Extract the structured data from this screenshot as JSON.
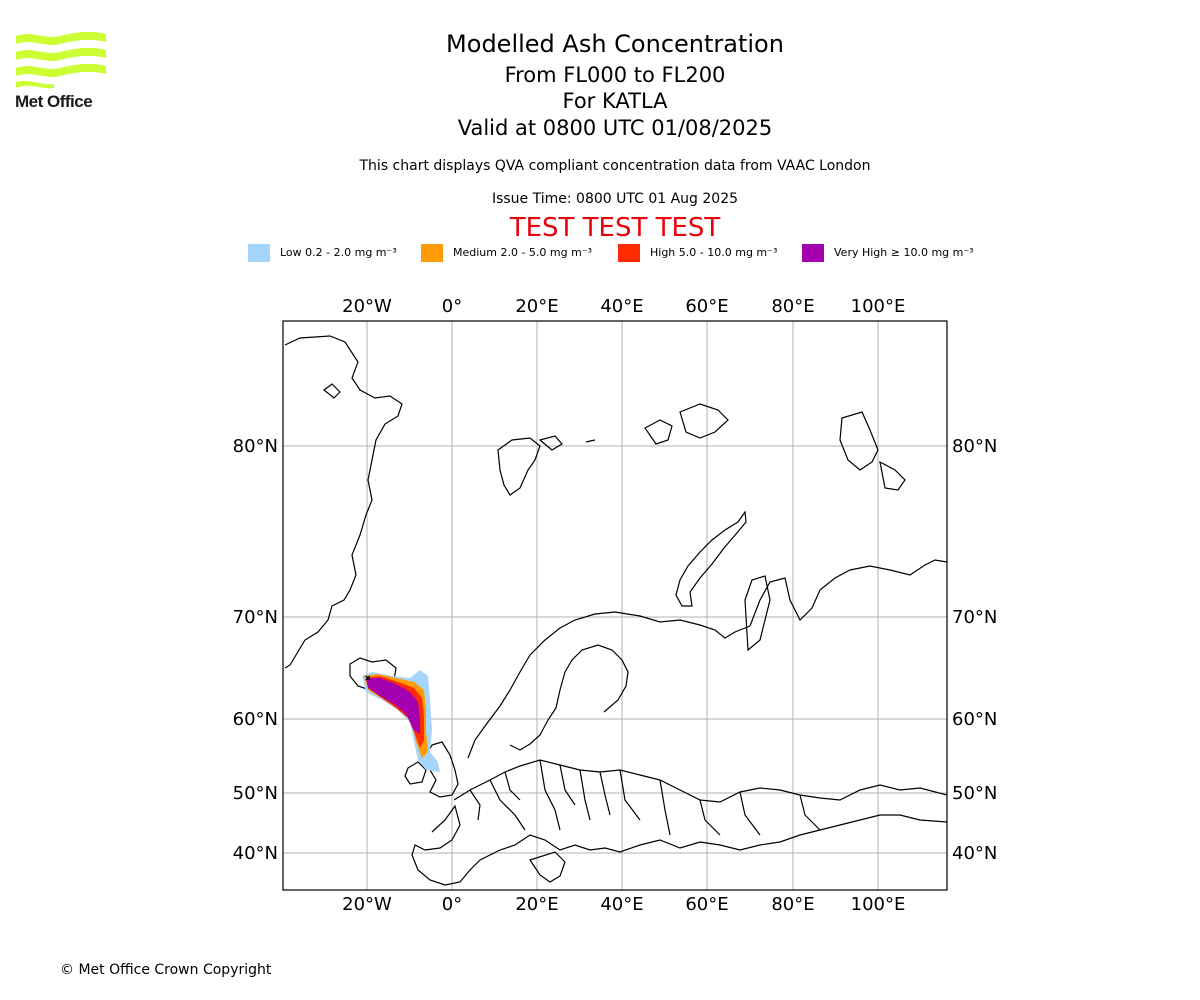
{
  "header": {
    "logo_text": "Met Office",
    "title": "Modelled Ash Concentration",
    "levels": "From FL000 to FL200",
    "volcano": "For KATLA",
    "valid": "Valid at 0800 UTC 01/08/2025",
    "note": "This chart displays QVA compliant concentration data from VAAC London",
    "issue": "Issue Time: 0800 UTC 01 Aug 2025",
    "test_banner": "TEST TEST TEST"
  },
  "legend": [
    {
      "label": "Low 0.2 - 2.0 mg m⁻³",
      "color": "#a5d5fb"
    },
    {
      "label": "Medium 2.0 - 5.0 mg m⁻³",
      "color": "#ff9b07"
    },
    {
      "label": "High 5.0 - 10.0 mg m⁻³",
      "color": "#ff2c02"
    },
    {
      "label": "Very High ≥ 10.0 mg m⁻³",
      "color": "#a400b0"
    }
  ],
  "map": {
    "lon_ticks": [
      "20°W",
      "0°",
      "20°E",
      "40°E",
      "60°E",
      "80°E",
      "100°E"
    ],
    "lat_ticks": [
      "80°N",
      "70°N",
      "60°N",
      "50°N",
      "40°N"
    ],
    "grid_color": "#b0b0b0"
  },
  "footer": {
    "copyright": "© Met Office Crown Copyright"
  }
}
